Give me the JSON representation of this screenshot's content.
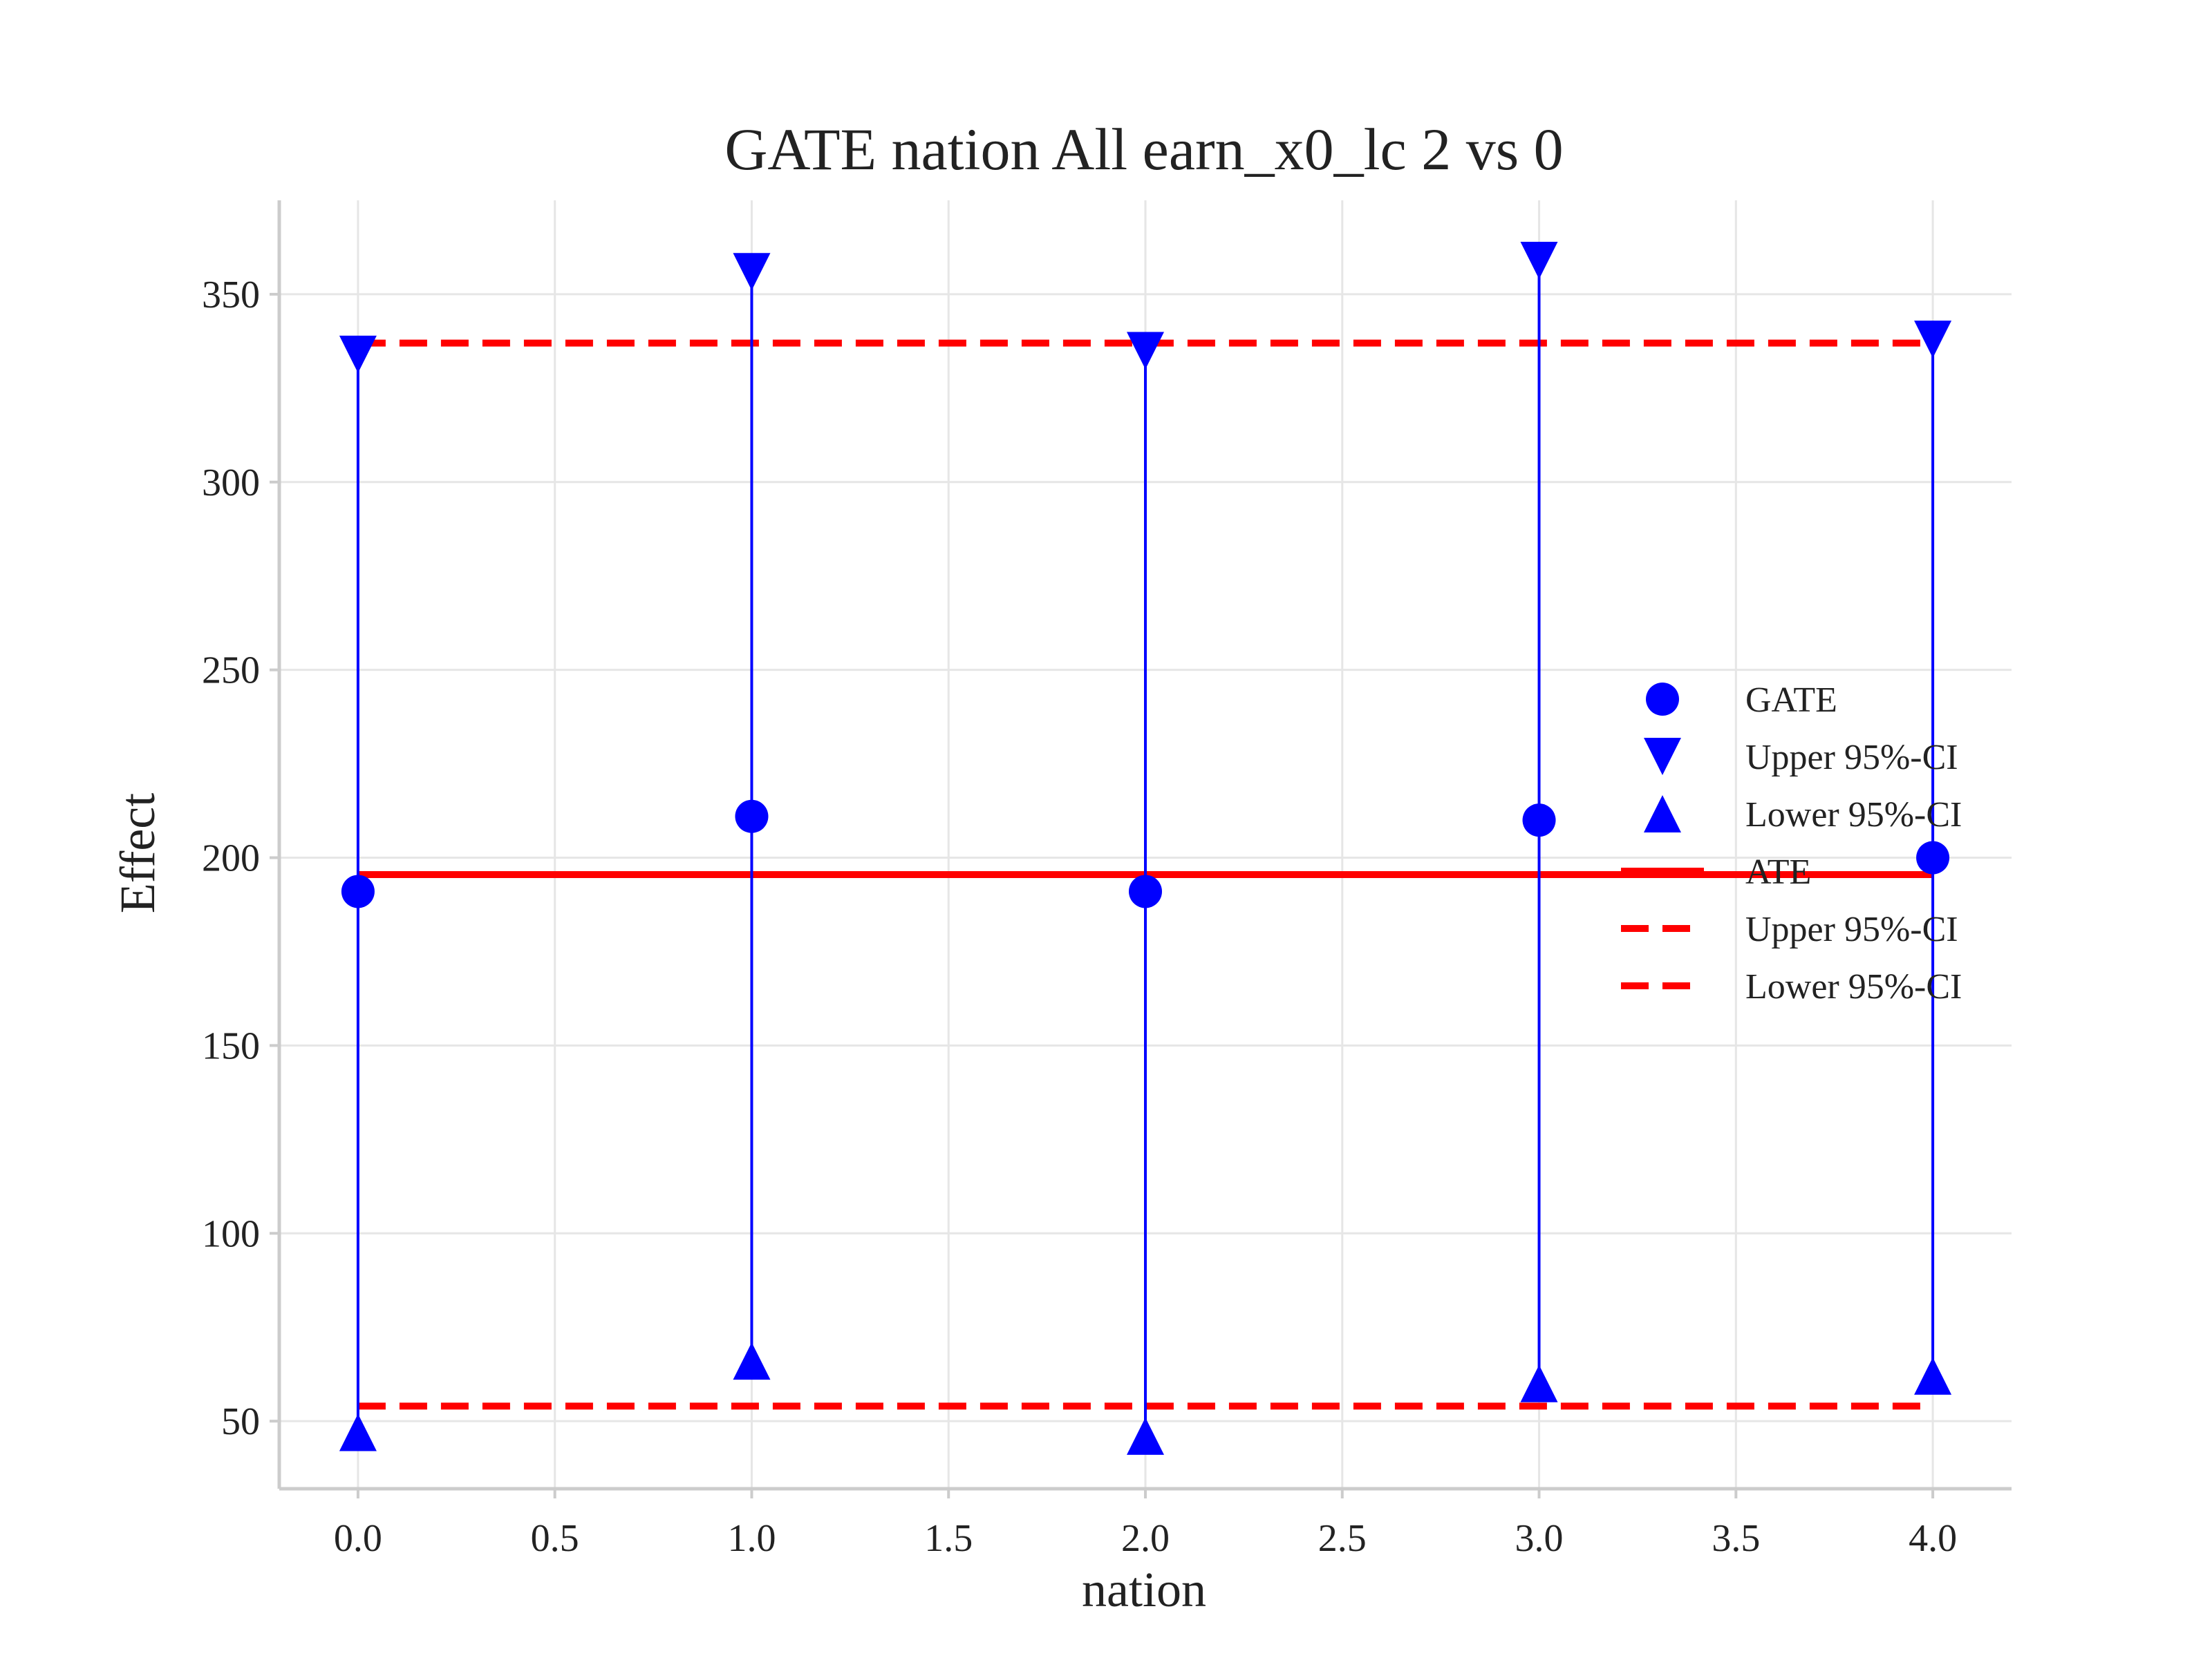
{
  "chart_data": {
    "type": "scatter",
    "title": "GATE nation All earn_x0_lc  2 vs 0",
    "xlabel": "nation",
    "ylabel": "Effect",
    "xlim": [
      -0.2,
      4.2
    ],
    "ylim": [
      32,
      375
    ],
    "x_ticks": [
      "0.0",
      "0.5",
      "1.0",
      "1.5",
      "2.0",
      "2.5",
      "3.0",
      "3.5",
      "4.0"
    ],
    "y_ticks": [
      "50",
      "100",
      "150",
      "200",
      "250",
      "300",
      "350"
    ],
    "grid": true,
    "legend_position": "center-right",
    "x": [
      0,
      1,
      2,
      3,
      4
    ],
    "series": [
      {
        "name": "GATE",
        "marker": "circle",
        "values": [
          191,
          211,
          191,
          210,
          200
        ]
      },
      {
        "name": "Upper 95%-CI",
        "marker": "triangle-down",
        "values": [
          334,
          356,
          335,
          359,
          338
        ]
      },
      {
        "name": "Lower 95%-CI",
        "marker": "triangle-up",
        "values": [
          47,
          66,
          46,
          60,
          62
        ]
      }
    ],
    "reference_lines": [
      {
        "name": "ATE",
        "style": "solid",
        "value": 195.5
      },
      {
        "name": "Upper 95%-CI",
        "style": "dashed",
        "value": 337
      },
      {
        "name": "Lower 95%-CI",
        "style": "dashed",
        "value": 54
      }
    ],
    "colors": {
      "points": "#0000ff",
      "reference": "#ff0000"
    }
  }
}
